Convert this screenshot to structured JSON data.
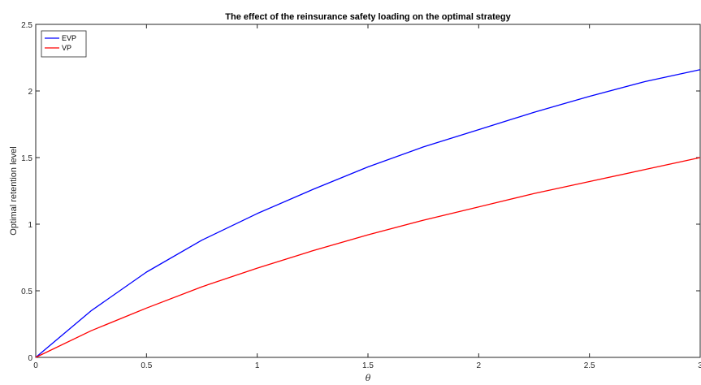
{
  "chart_data": {
    "type": "line",
    "title": "The effect of the reinsurance safety loading on the optimal strategy",
    "xlabel": "θ",
    "ylabel": "Optimal retention level",
    "xlim": [
      0,
      3
    ],
    "ylim": [
      0,
      2.5
    ],
    "x_ticks": [
      0,
      0.5,
      1,
      1.5,
      2,
      2.5,
      3
    ],
    "x_tick_labels": [
      "0",
      "0.5",
      "1",
      "1.5",
      "2",
      "2.5",
      "3"
    ],
    "y_ticks": [
      0,
      0.5,
      1,
      1.5,
      2,
      2.5
    ],
    "y_tick_labels": [
      "0",
      "0.5",
      "1",
      "1.5",
      "2",
      "2.5"
    ],
    "grid": false,
    "legend_position": "top-left",
    "x": [
      0,
      0.25,
      0.5,
      0.75,
      1,
      1.25,
      1.5,
      1.75,
      2,
      2.25,
      2.5,
      2.75,
      3
    ],
    "series": [
      {
        "name": "EVP",
        "color": "#0000ff",
        "values": [
          0,
          0.35,
          0.64,
          0.88,
          1.08,
          1.26,
          1.43,
          1.58,
          1.71,
          1.84,
          1.96,
          2.07,
          2.16
        ]
      },
      {
        "name": "VP",
        "color": "#ff0000",
        "values": [
          0,
          0.2,
          0.37,
          0.53,
          0.67,
          0.8,
          0.92,
          1.03,
          1.13,
          1.23,
          1.32,
          1.41,
          1.5
        ]
      }
    ]
  }
}
